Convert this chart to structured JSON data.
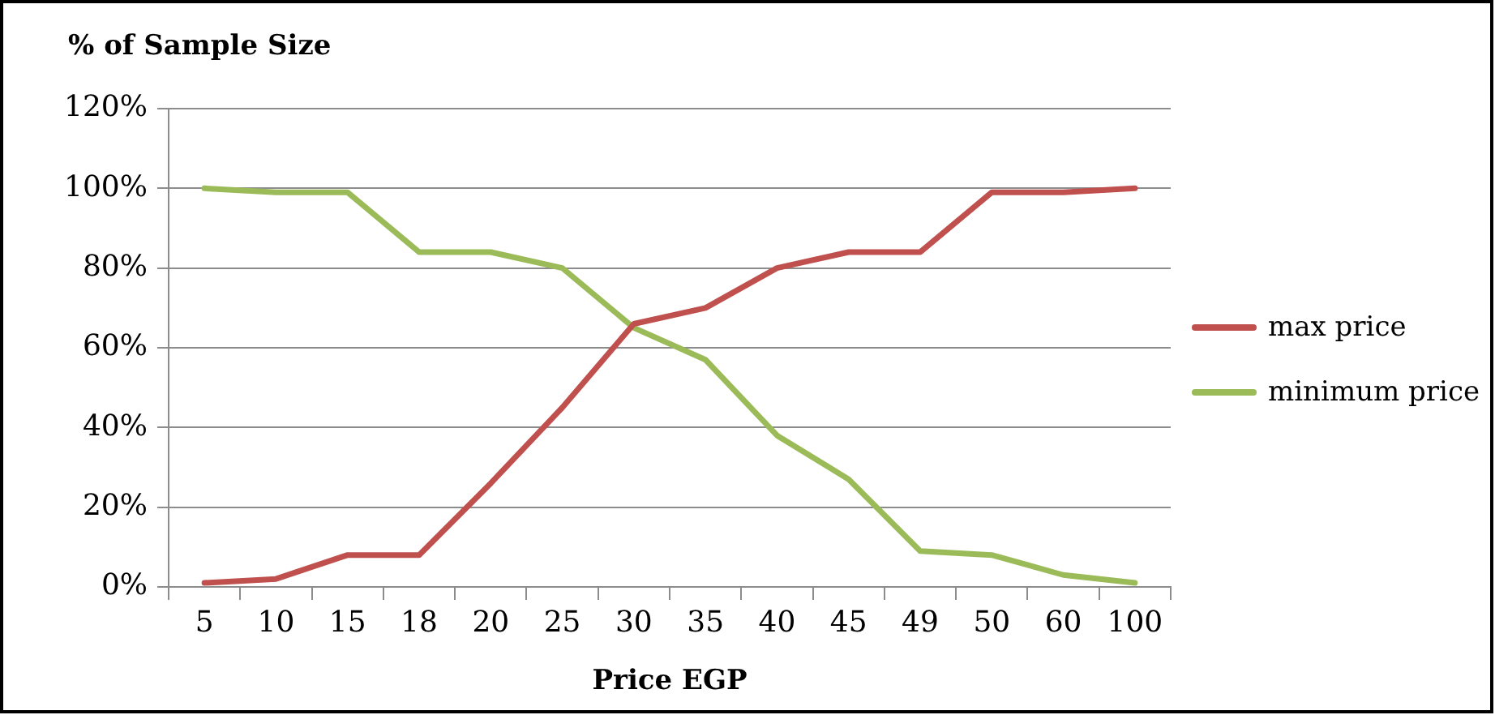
{
  "chart_data": {
    "type": "line",
    "ylabel": "% of Sample Size",
    "xlabel": "Price EGP",
    "categories": [
      "5",
      "10",
      "15",
      "18",
      "20",
      "25",
      "30",
      "35",
      "40",
      "45",
      "49",
      "50",
      "60",
      "100"
    ],
    "series": [
      {
        "name": "max price",
        "color": "#c0504d",
        "values": [
          1,
          2,
          8,
          8,
          26,
          45,
          66,
          70,
          80,
          84,
          84,
          99,
          99,
          100
        ]
      },
      {
        "name": "minimum price",
        "color": "#9bbb59",
        "values": [
          100,
          99,
          99,
          84,
          84,
          80,
          65,
          57,
          38,
          27,
          9,
          8,
          3,
          1
        ]
      }
    ],
    "ylim": [
      0,
      120
    ],
    "yticks": [
      {
        "value": 0,
        "label": "0%"
      },
      {
        "value": 20,
        "label": "20%"
      },
      {
        "value": 40,
        "label": "40%"
      },
      {
        "value": 60,
        "label": "60%"
      },
      {
        "value": 80,
        "label": "80%"
      },
      {
        "value": 100,
        "label": "100%"
      },
      {
        "value": 120,
        "label": "120%"
      }
    ],
    "grid": "y",
    "legend": "right",
    "marker": "none",
    "line_style": "solid"
  }
}
